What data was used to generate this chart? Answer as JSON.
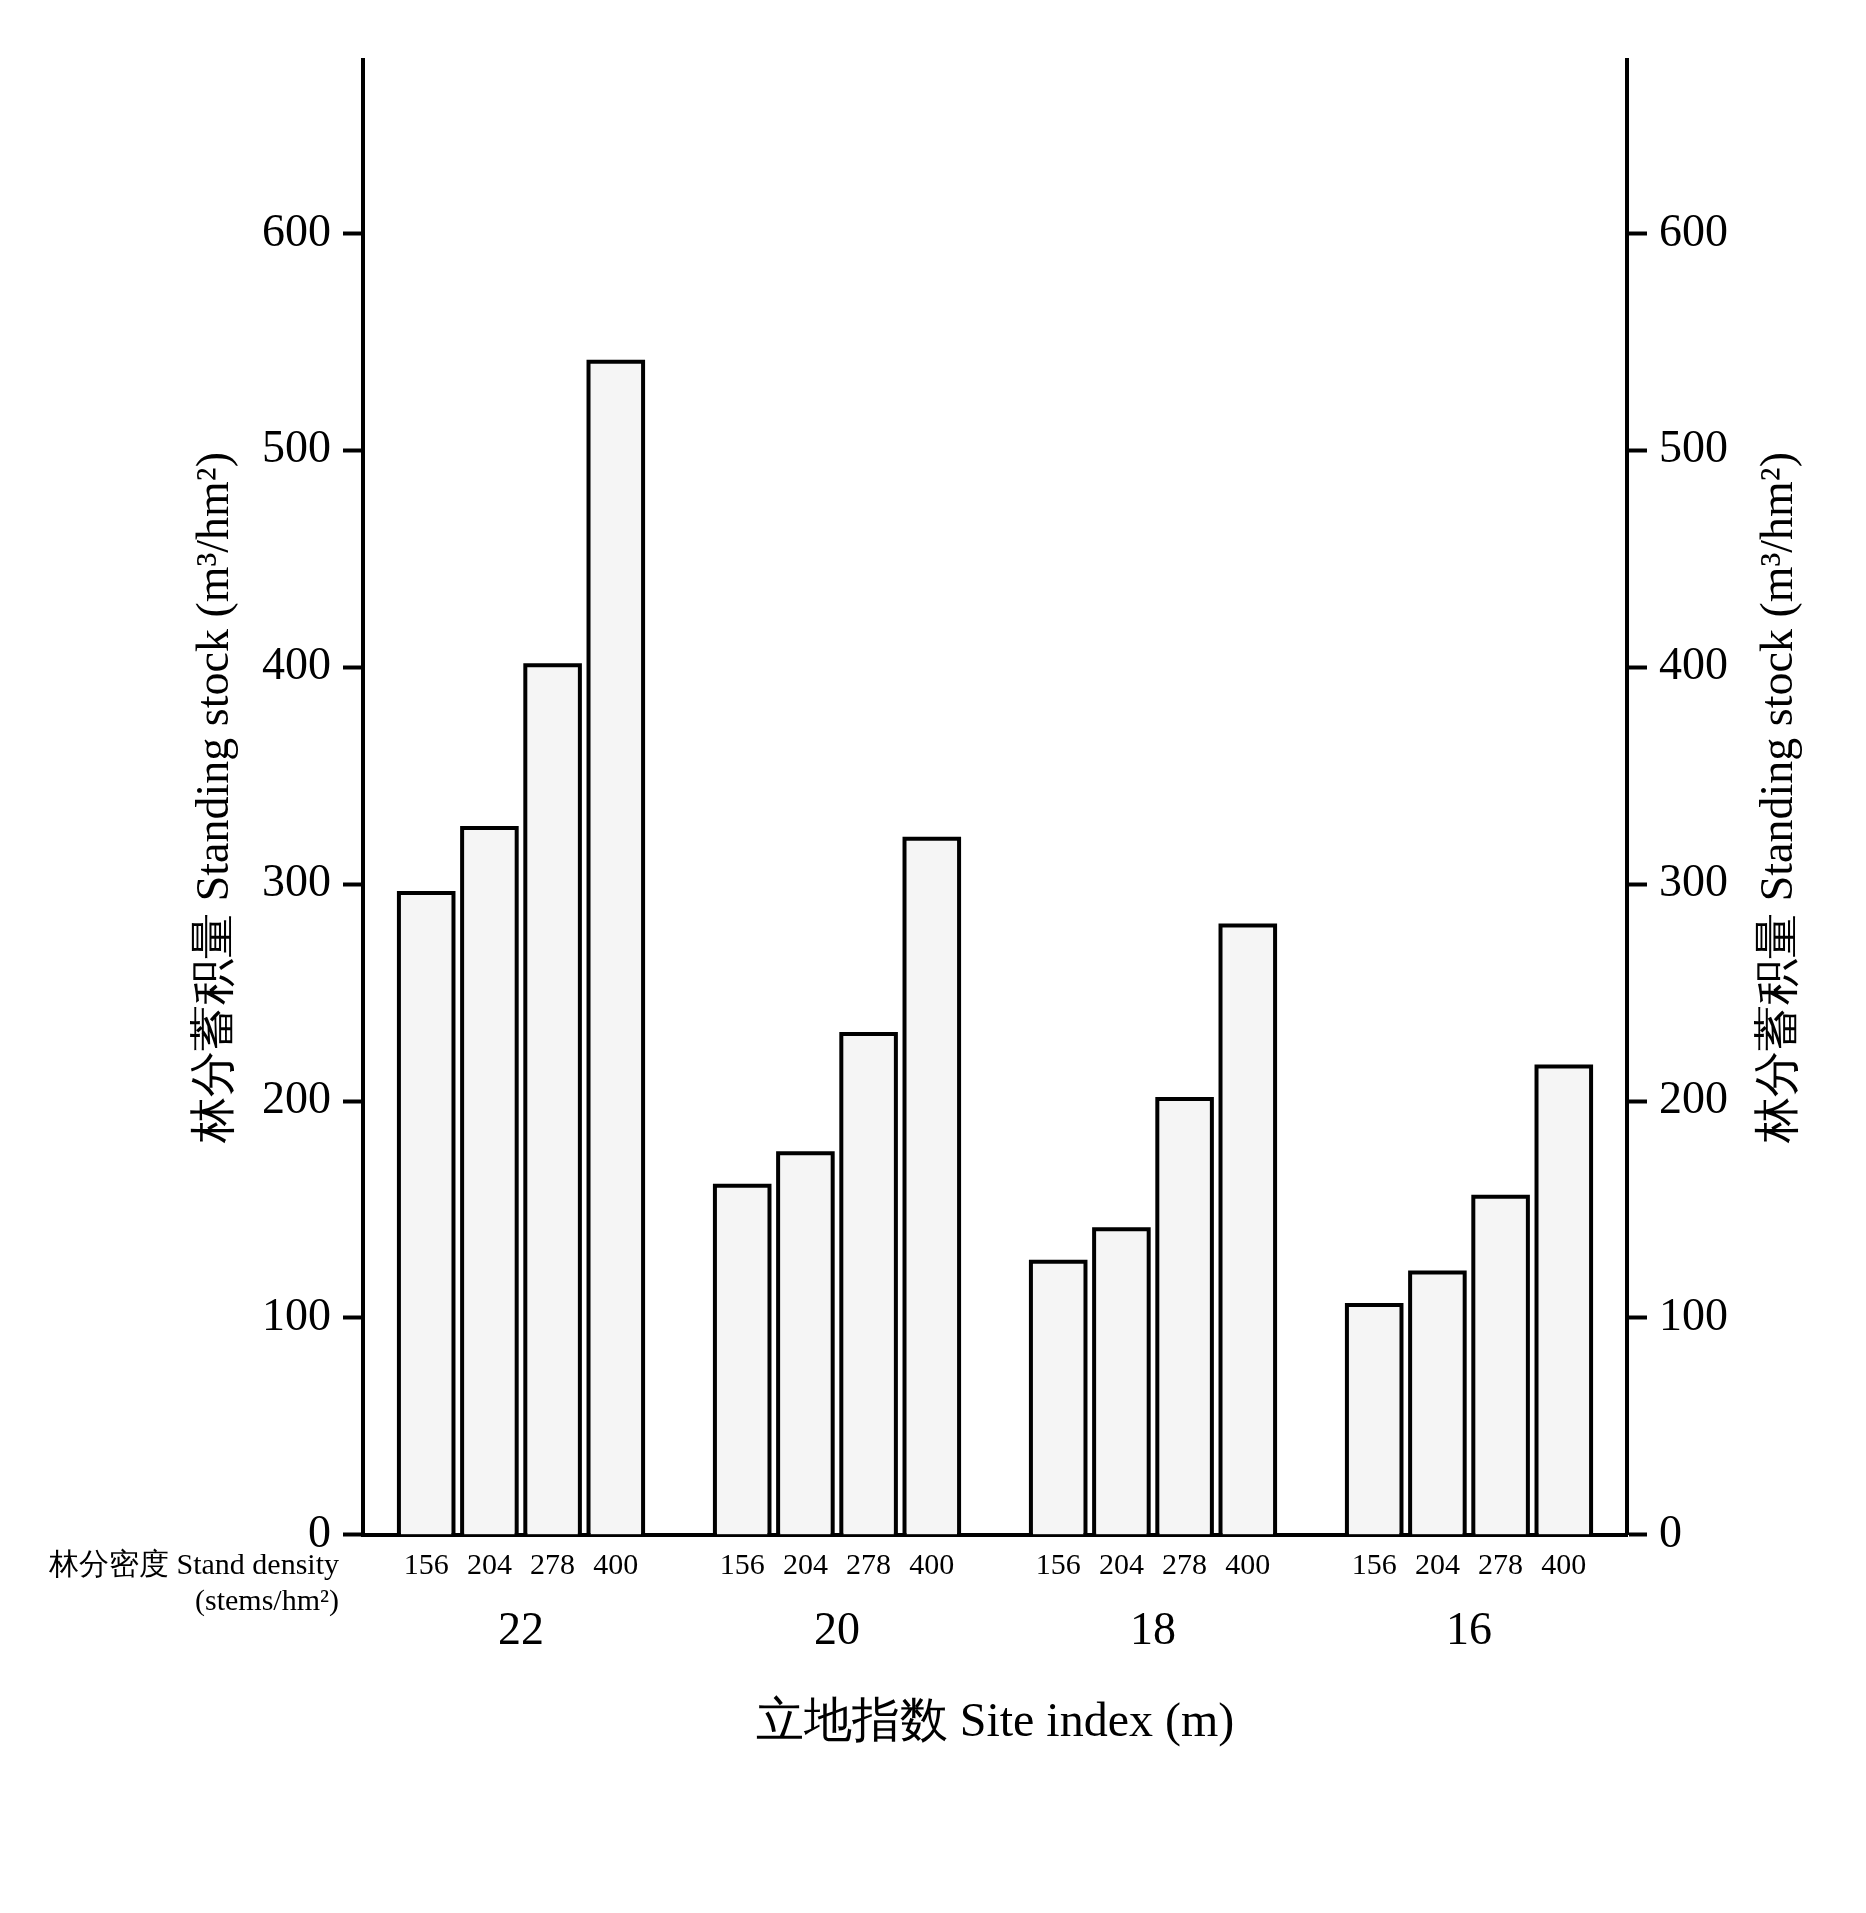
{
  "chart_data": {
    "type": "bar",
    "ylabel": "林分蓄积量 Standing stock (m³/hm²)",
    "y2label": "林分蓄积量 Standing stock (m³/hm²)",
    "xlabel": "立地指数 Site index (m)",
    "legend_title": "林分密度 Stand density (stems/hm²)",
    "categories": [
      "22",
      "20",
      "18",
      "16"
    ],
    "series": [
      {
        "name": "156",
        "color": "#f5f5f5",
        "values": [
          295,
          160,
          125,
          105
        ]
      },
      {
        "name": "204",
        "color": "#f5f5f5",
        "values": [
          325,
          175,
          140,
          120
        ]
      },
      {
        "name": "278",
        "color": "#f5f5f5",
        "values": [
          400,
          230,
          200,
          155
        ]
      },
      {
        "name": "400",
        "color": "#f5f5f5",
        "values": [
          540,
          320,
          280,
          215
        ]
      }
    ],
    "ylim": [
      0,
      680
    ],
    "yticks": [
      0,
      100,
      200,
      300,
      400,
      500,
      600
    ],
    "y2lim": [
      0,
      680
    ],
    "y2ticks": [
      0,
      100,
      200,
      300,
      400,
      500,
      600
    ]
  }
}
